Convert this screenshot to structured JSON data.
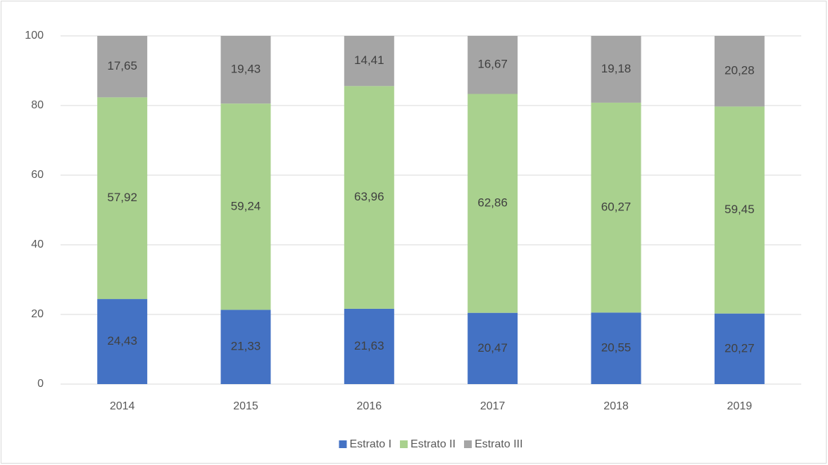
{
  "chart_data": {
    "type": "stacked_bar",
    "categories": [
      "2014",
      "2015",
      "2016",
      "2017",
      "2018",
      "2019"
    ],
    "series": [
      {
        "name": "Estrato I",
        "color": "#4472c4",
        "values": [
          24.43,
          21.33,
          21.63,
          20.47,
          20.55,
          20.27
        ],
        "value_labels": [
          "24,43",
          "21,33",
          "21,63",
          "20,47",
          "20,55",
          "20,27"
        ]
      },
      {
        "name": "Estrato II",
        "color": "#a9d18e",
        "values": [
          57.92,
          59.24,
          63.96,
          62.86,
          60.27,
          59.45
        ],
        "value_labels": [
          "57,92",
          "59,24",
          "63,96",
          "62,86",
          "60,27",
          "59,45"
        ]
      },
      {
        "name": "Estrato III",
        "color": "#a5a5a5",
        "values": [
          17.65,
          19.43,
          14.41,
          16.67,
          19.18,
          20.28
        ],
        "value_labels": [
          "17,65",
          "19,43",
          "14,41",
          "16,67",
          "19,18",
          "20,28"
        ]
      }
    ],
    "ylim": [
      0,
      100
    ],
    "yticks": [
      0,
      20,
      40,
      60,
      80,
      100
    ],
    "grid": true,
    "legend": "bottom"
  }
}
